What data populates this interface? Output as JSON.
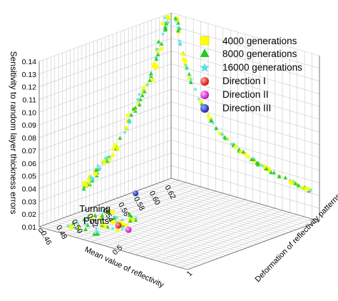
{
  "chart_data": {
    "type": "scatter",
    "title": "",
    "xlabel": "Mean value of reflectivity",
    "ylabel": "Deformation of reflectivity patterns",
    "zlabel": "Sensitivity to random layer thickness errors",
    "xlim": [
      0.46,
      0.63
    ],
    "ylim": [
      0,
      1
    ],
    "zlim": [
      0.01,
      0.14
    ],
    "x_ticks": [
      "0.46",
      "0.48",
      "0.50",
      "0.52",
      "0.54",
      "0.56",
      "0.58",
      "0.60",
      "0.62"
    ],
    "y_ticks": [
      "0",
      "0.5",
      "1"
    ],
    "z_ticks": [
      "0.01",
      "0.02",
      "0.03",
      "0.04",
      "0.05",
      "0.06",
      "0.07",
      "0.08",
      "0.09",
      "0.10",
      "0.11",
      "0.12",
      "0.13",
      "0.14"
    ],
    "grid": true,
    "legend_position": "top-right",
    "annotation": "Turning\nPoints",
    "series": [
      {
        "name": "4000 generations",
        "marker": "square",
        "color": "#ffff00"
      },
      {
        "name": "8000 generations",
        "marker": "triangle",
        "color": "#22cc22"
      },
      {
        "name": "16000 generations",
        "marker": "star",
        "color": "#55e0e0"
      },
      {
        "name": "Direction I",
        "marker": "sphere",
        "color": "#ee2222"
      },
      {
        "name": "Direction II",
        "marker": "sphere",
        "color": "#dd22dd"
      },
      {
        "name": "Direction III",
        "marker": "sphere",
        "color": "#2233cc"
      }
    ],
    "fronts": {
      "vertical_x": [
        0.62,
        0.615,
        0.61,
        0.605,
        0.6,
        0.59,
        0.58,
        0.57,
        0.56,
        0.55,
        0.54,
        0.53,
        0.52,
        0.515,
        0.51
      ],
      "vertical_z": [
        0.14,
        0.13,
        0.12,
        0.11,
        0.1,
        0.09,
        0.08,
        0.07,
        0.06,
        0.05,
        0.045,
        0.04,
        0.035,
        0.032,
        0.03
      ],
      "right_y": [
        0.05,
        0.08,
        0.12,
        0.18,
        0.25,
        0.33,
        0.42,
        0.52,
        0.62,
        0.72,
        0.82,
        0.9,
        0.96
      ],
      "right_z": [
        0.14,
        0.12,
        0.1,
        0.085,
        0.07,
        0.06,
        0.052,
        0.046,
        0.042,
        0.038,
        0.036,
        0.034,
        0.033
      ]
    }
  }
}
